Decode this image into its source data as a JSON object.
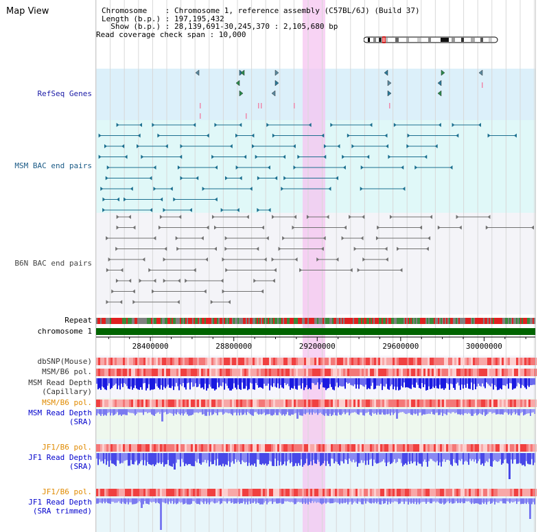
{
  "panel_title": "Map View",
  "info": {
    "line1": "Chromosome    : Chromosome 1, reference assembly (C57BL/6J) (Build 37)",
    "line2": "Length (b.p.) : 197,195,432",
    "line3": "  Show (b.p.) : 28,139,691-30,245,370 : 2,105,680 bp",
    "line4": "Read coverage check span : 10,000"
  },
  "view": {
    "start": 28139691,
    "end": 30245370,
    "highlight_start": 29130000,
    "highlight_end": 29240000
  },
  "tracks": {
    "refseq": "RefSeq Genes",
    "msm_bac": "MSM BAC end pairs",
    "b6n_bac": "B6N BAC end pairs",
    "repeat": "Repeat",
    "chrom": "chromosome 1",
    "dbsnp": "dbSNP(Mouse)",
    "msm_b6_pol_1": "MSM/B6 pol.",
    "msm_depth_cap_1": "MSM Read Depth",
    "msm_depth_cap_2": "(Capillary)",
    "msm_b6_pol_2": "MSM/B6 pol.",
    "msm_depth_sra_1": "MSM Read Depth",
    "msm_depth_sra_2": "(SRA)",
    "jf1_b6_pol_1": "JF1/B6 pol.",
    "jf1_depth_sra_1": "JF1 Read Depth",
    "jf1_depth_sra_2": "(SRA)",
    "jf1_b6_pol_2": "JF1/B6 pol.",
    "jf1_depth_trim_1": "JF1 Read Depth",
    "jf1_depth_trim_2": "(SRA trimmed)"
  },
  "axis": {
    "ticks": [
      "28400000",
      "28800000",
      "29200000",
      "29600000",
      "30000000"
    ],
    "tick_values": [
      28400000,
      28800000,
      29200000,
      29600000,
      30000000
    ]
  },
  "colors": {
    "refseq_bg": "#dcf0fa",
    "msm_bg": "#e0f8f8",
    "b6n_bg": "#f4f4f8",
    "highlight": "#f6c4f0",
    "chrom_bar": "#006400",
    "depth_blue": "#2a2aee",
    "depth_light": "#8a8af4",
    "pol_red": "#ee3333",
    "bac_teal": "#1a6e8e",
    "bac_grey": "#707070"
  }
}
